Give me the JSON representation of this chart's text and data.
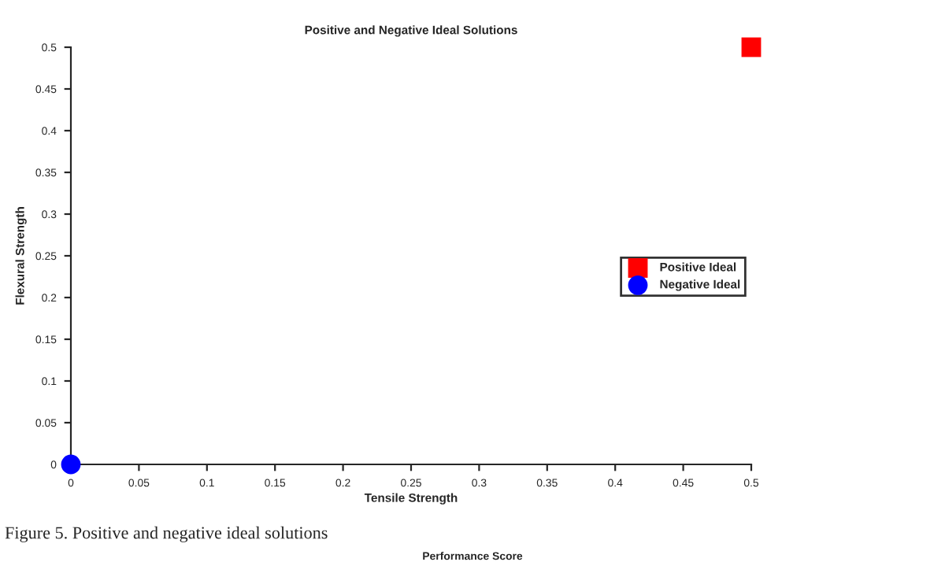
{
  "chart_data": {
    "type": "scatter",
    "title": "Positive and Negative Ideal Solutions",
    "xlabel": "Tensile Strength",
    "ylabel": "Flexural Strength",
    "series": [
      {
        "name": "Positive Ideal",
        "color": "#ff0000",
        "marker": "square",
        "x": [
          0.5
        ],
        "values": [
          0.5
        ]
      },
      {
        "name": "Negative Ideal",
        "color": "#0000ff",
        "marker": "circle",
        "x": [
          0
        ],
        "values": [
          0
        ]
      }
    ],
    "xlim": [
      0,
      0.5
    ],
    "ylim": [
      0,
      0.5
    ],
    "xticks": [
      0,
      0.05,
      0.1,
      0.15,
      0.2,
      0.25,
      0.3,
      0.35,
      0.4,
      0.45,
      0.5
    ],
    "yticks": [
      0,
      0.05,
      0.1,
      0.15,
      0.2,
      0.25,
      0.3,
      0.35,
      0.4,
      0.45,
      0.5
    ],
    "legend": "right",
    "annotations": [
      "Figure 5. Positive and negative ideal solutions",
      "Performance Score"
    ]
  }
}
